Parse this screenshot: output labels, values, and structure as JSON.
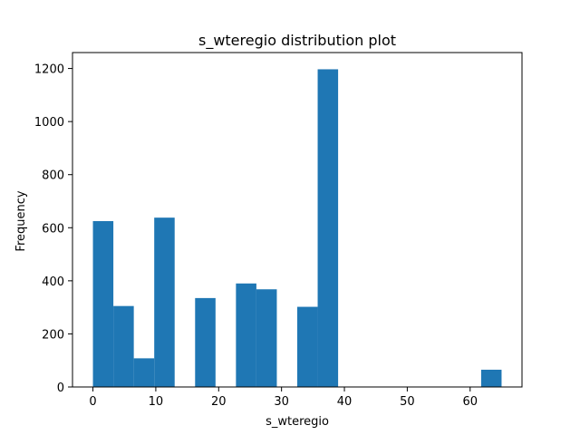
{
  "chart_data": {
    "type": "bar",
    "title": "s_wteregio distribution plot",
    "xlabel": "s_wteregio",
    "ylabel": "Frequency",
    "bar_color": "#1f77b4",
    "xlim": [
      -3.25,
      68.25
    ],
    "ylim": [
      0,
      1260
    ],
    "x_ticks": [
      0,
      10,
      20,
      30,
      40,
      50,
      60
    ],
    "y_ticks": [
      0,
      200,
      400,
      600,
      800,
      1000,
      1200
    ],
    "bins": [
      {
        "x0": 0.0,
        "x1": 3.25,
        "value": 625
      },
      {
        "x0": 3.25,
        "x1": 6.5,
        "value": 305
      },
      {
        "x0": 6.5,
        "x1": 9.75,
        "value": 108
      },
      {
        "x0": 9.75,
        "x1": 13.0,
        "value": 638
      },
      {
        "x0": 13.0,
        "x1": 16.25,
        "value": 0
      },
      {
        "x0": 16.25,
        "x1": 19.5,
        "value": 335
      },
      {
        "x0": 19.5,
        "x1": 22.75,
        "value": 0
      },
      {
        "x0": 22.75,
        "x1": 26.0,
        "value": 390
      },
      {
        "x0": 26.0,
        "x1": 29.25,
        "value": 368
      },
      {
        "x0": 29.25,
        "x1": 32.5,
        "value": 0
      },
      {
        "x0": 32.5,
        "x1": 35.75,
        "value": 302
      },
      {
        "x0": 35.75,
        "x1": 39.0,
        "value": 1197
      },
      {
        "x0": 39.0,
        "x1": 42.25,
        "value": 0
      },
      {
        "x0": 42.25,
        "x1": 45.5,
        "value": 0
      },
      {
        "x0": 45.5,
        "x1": 48.75,
        "value": 0
      },
      {
        "x0": 48.75,
        "x1": 52.0,
        "value": 0
      },
      {
        "x0": 52.0,
        "x1": 55.25,
        "value": 0
      },
      {
        "x0": 55.25,
        "x1": 58.5,
        "value": 0
      },
      {
        "x0": 58.5,
        "x1": 61.75,
        "value": 0
      },
      {
        "x0": 61.75,
        "x1": 65.0,
        "value": 65
      }
    ],
    "grid": false,
    "legend": "none"
  }
}
